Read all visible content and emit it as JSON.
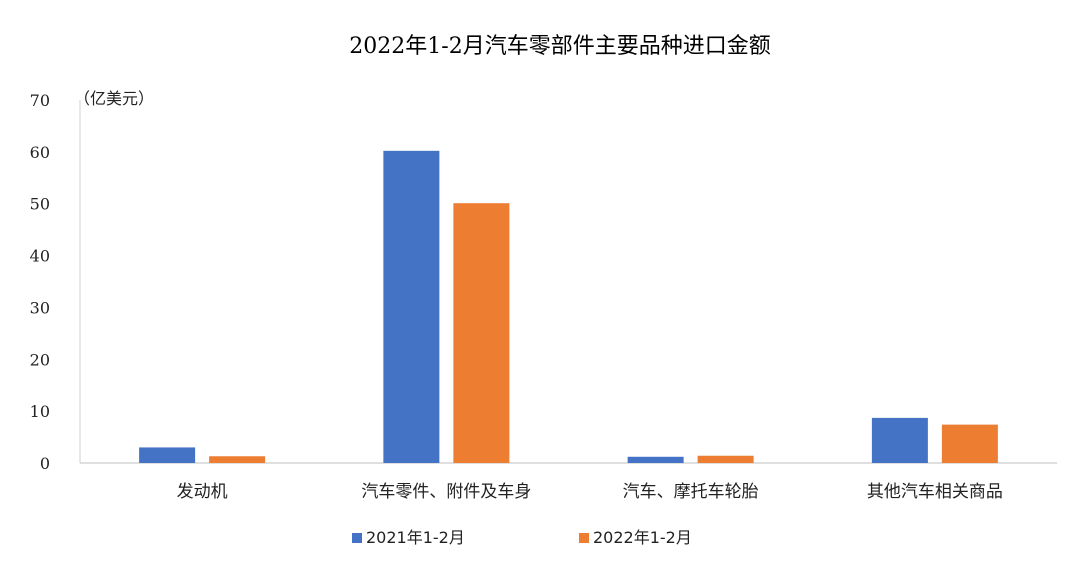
{
  "chart_data": {
    "type": "bar",
    "title": "2022年1-2月汽车零部件主要品种进口金额",
    "ylabel": "（亿美元）",
    "ylim": [
      0,
      70
    ],
    "yticks": [
      0,
      10,
      20,
      30,
      40,
      50,
      60,
      70
    ],
    "grid": false,
    "legend_position": "bottom",
    "categories": [
      "发动机",
      "汽车零件、附件及车身",
      "汽车、摩托车轮胎",
      "其他汽车相关商品"
    ],
    "series": [
      {
        "name": "2021年1-2月",
        "color": "#4472C4",
        "values": [
          3.0,
          60.2,
          1.2,
          8.7
        ]
      },
      {
        "name": "2022年1-2月",
        "color": "#ED7D31",
        "values": [
          1.3,
          50.1,
          1.4,
          7.4
        ]
      }
    ]
  }
}
